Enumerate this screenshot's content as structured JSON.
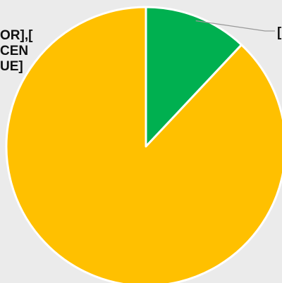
{
  "chart_data": {
    "type": "pie",
    "title": "",
    "slices": [
      {
        "value": 12,
        "color": "#00b050"
      },
      {
        "value": 88,
        "color": "#ffc000"
      }
    ],
    "data_labels": [
      {
        "lines": [
          "["
        ]
      },
      {
        "lines": [
          "OR],[",
          "CEN",
          "UE]"
        ]
      }
    ],
    "legend": "none"
  }
}
